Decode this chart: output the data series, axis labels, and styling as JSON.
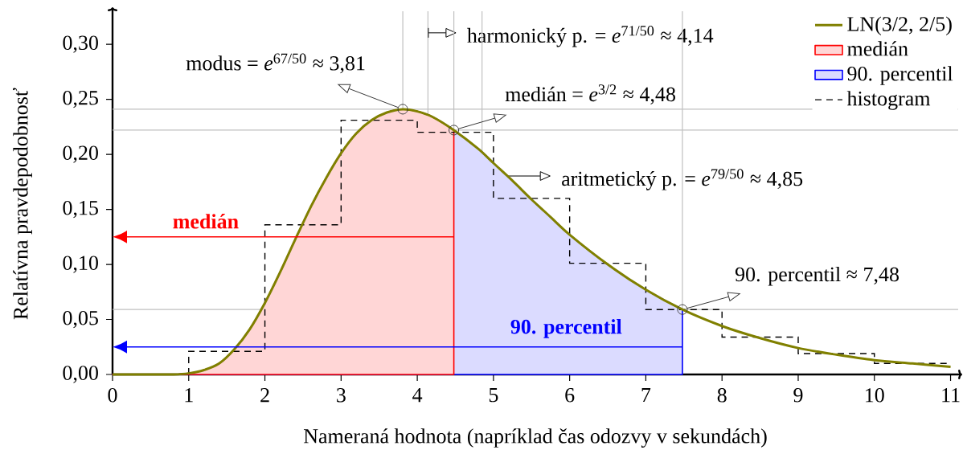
{
  "chart_data": {
    "type": "histogram",
    "xlabel": "Nameraná hodnota (napríklad čas odozvy v sekundách)",
    "ylabel": "Relatívna pravdepodobnosť",
    "xlim": [
      0,
      11.1
    ],
    "ylim": [
      0,
      0.33
    ],
    "xticks": [
      0,
      1,
      2,
      3,
      4,
      5,
      6,
      7,
      8,
      9,
      10,
      11
    ],
    "yticks": [
      {
        "value": 0,
        "label": "0,00"
      },
      {
        "value": 0.05,
        "label": "0,05"
      },
      {
        "value": 0.1,
        "label": "0,10"
      },
      {
        "value": 0.15,
        "label": "0,15"
      },
      {
        "value": 0.2,
        "label": "0,20"
      },
      {
        "value": 0.25,
        "label": "0,25"
      },
      {
        "value": 0.3,
        "label": "0,30"
      }
    ],
    "legend": "top right",
    "bins": [
      1,
      2,
      3,
      4,
      5,
      6,
      7,
      8,
      9,
      10,
      11
    ],
    "series": [
      {
        "name": "LN(3/2, 2/5)",
        "type": "line",
        "color": "#808000",
        "x": [
          0,
          0.5,
          0.8,
          1.0,
          1.2,
          1.4,
          1.6,
          1.8,
          2.0,
          2.2,
          2.4,
          2.6,
          2.8,
          3.0,
          3.2,
          3.4,
          3.6,
          3.81,
          4.0,
          4.2,
          4.48,
          4.8,
          5.0,
          5.25,
          5.5,
          5.75,
          6.0,
          6.5,
          7.0,
          7.48,
          8.0,
          8.5,
          9.0,
          9.5,
          10.0,
          10.5,
          11.0
        ],
        "values": [
          0,
          0,
          0,
          0.001,
          0.004,
          0.01,
          0.023,
          0.041,
          0.065,
          0.093,
          0.123,
          0.152,
          0.178,
          0.201,
          0.219,
          0.231,
          0.238,
          0.241,
          0.239,
          0.234,
          0.222,
          0.205,
          0.192,
          0.176,
          0.159,
          0.143,
          0.127,
          0.1,
          0.077,
          0.059,
          0.044,
          0.033,
          0.024,
          0.018,
          0.013,
          0.01,
          0.007
        ]
      },
      {
        "name": "medián",
        "type": "area",
        "color": "#ff0000",
        "x": [
          0,
          0.5,
          0.8,
          1.0,
          1.2,
          1.4,
          1.6,
          1.8,
          2.0,
          2.2,
          2.4,
          2.6,
          2.8,
          3.0,
          3.2,
          3.4,
          3.6,
          3.81,
          4.0,
          4.2,
          4.48
        ],
        "values": [
          0,
          0,
          0,
          0.001,
          0.004,
          0.01,
          0.023,
          0.041,
          0.065,
          0.093,
          0.123,
          0.152,
          0.178,
          0.201,
          0.219,
          0.231,
          0.238,
          0.241,
          0.239,
          0.234,
          0.222
        ]
      },
      {
        "name": "90. percentil",
        "type": "area",
        "color": "#0000ff",
        "x": [
          0,
          0.5,
          0.8,
          1.0,
          1.2,
          1.4,
          1.6,
          1.8,
          2.0,
          2.2,
          2.4,
          2.6,
          2.8,
          3.0,
          3.2,
          3.4,
          3.6,
          3.81,
          4.0,
          4.2,
          4.48,
          4.8,
          5.0,
          5.25,
          5.5,
          5.75,
          6.0,
          6.5,
          7.0,
          7.48
        ],
        "values": [
          0,
          0,
          0,
          0.001,
          0.004,
          0.01,
          0.023,
          0.041,
          0.065,
          0.093,
          0.123,
          0.152,
          0.178,
          0.201,
          0.219,
          0.231,
          0.238,
          0.241,
          0.239,
          0.234,
          0.222,
          0.205,
          0.192,
          0.176,
          0.159,
          0.143,
          0.127,
          0.1,
          0.077,
          0.059
        ]
      },
      {
        "name": "histogram",
        "color": "#000000",
        "line_style": "dashed",
        "values": [
          0.021,
          0.136,
          0.231,
          0.22,
          0.16,
          0.101,
          0.059,
          0.034,
          0.019,
          0.01
        ]
      }
    ],
    "ref_lines": [
      {
        "axis": "x",
        "value": 3.81,
        "color": "#c0c0c0"
      },
      {
        "axis": "x",
        "value": 4.14,
        "label": "harmonický p. = *e*$^{71/50}$ ≈ 4,14",
        "color": "#c0c0c0"
      },
      {
        "axis": "x",
        "value": 4.48,
        "color": "#c0c0c0"
      },
      {
        "axis": "x",
        "value": 4.85,
        "label": "aritmetický p. = *e*$^{79/50}$ ≈ 4,85",
        "color": "#c0c0c0"
      },
      {
        "axis": "x",
        "value": 7.48,
        "color": "#c0c0c0"
      },
      {
        "axis": "y",
        "value": 0.241,
        "color": "#c0c0c0"
      },
      {
        "axis": "y",
        "value": 0.222,
        "color": "#c0c0c0"
      },
      {
        "axis": "y",
        "value": 0.059,
        "color": "#c0c0c0"
      }
    ],
    "annotations": [
      {
        "text": "modus = *e*$^{67/50}$ ≈ 3,81",
        "x": 3.81,
        "y": 0.241
      },
      {
        "text": "medián = *e*$^{3/2}$ ≈ 4,48",
        "x": 4.48,
        "y": 0.222
      },
      {
        "text": "90. percentil ≈ 7,48",
        "x": 7.48,
        "y": 0.059
      },
      "medián",
      "90. percentil"
    ]
  }
}
